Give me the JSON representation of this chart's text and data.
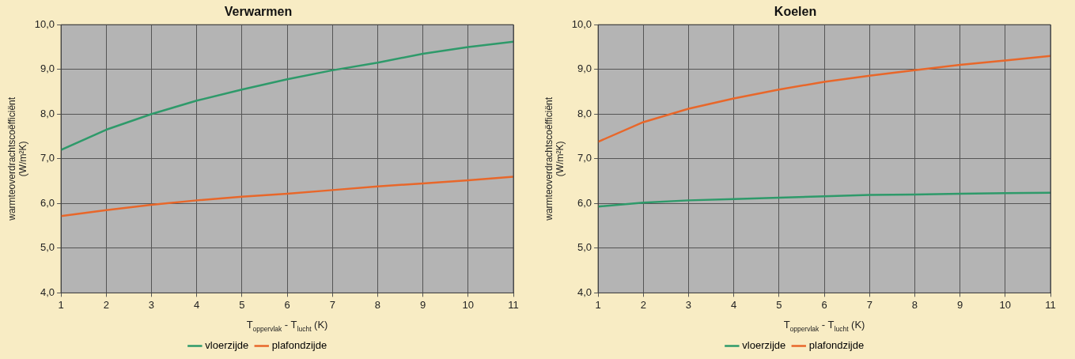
{
  "chart_data": [
    {
      "type": "line",
      "title": "Verwarmen",
      "xlabel": "T$_{oppervlak}$ - T$_{lucht}$ (K)",
      "ylabel": "warmteoverdrachtscoëfficiënt\n(W/m²K)",
      "x": [
        1,
        2,
        3,
        4,
        5,
        6,
        7,
        8,
        9,
        10,
        11
      ],
      "xlim": [
        1,
        11
      ],
      "xticks": [
        1,
        2,
        3,
        4,
        5,
        6,
        7,
        8,
        9,
        10,
        11
      ],
      "ylim": [
        4,
        10
      ],
      "yticks": [
        {
          "value": 4,
          "label": "4,0"
        },
        {
          "value": 5,
          "label": "5,0"
        },
        {
          "value": 6,
          "label": "6,0"
        },
        {
          "value": 7,
          "label": "7,0"
        },
        {
          "value": 8,
          "label": "8,0"
        },
        {
          "value": 9,
          "label": "9,0"
        },
        {
          "value": 10,
          "label": "10,0"
        }
      ],
      "grid": true,
      "legend": "bottom",
      "marker": "none",
      "line_style": "solid",
      "series": [
        {
          "name": "vloerzijde",
          "color": "#2e9a6a",
          "values": [
            7.2,
            7.65,
            8.0,
            8.3,
            8.55,
            8.78,
            8.98,
            9.15,
            9.35,
            9.5,
            9.62
          ]
        },
        {
          "name": "plafondzijde",
          "color": "#e8672a",
          "values": [
            5.72,
            5.85,
            5.97,
            6.07,
            6.15,
            6.22,
            6.3,
            6.38,
            6.45,
            6.52,
            6.6
          ]
        }
      ]
    },
    {
      "type": "line",
      "title": "Koelen",
      "xlabel": "T$_{oppervlak}$ - T$_{lucht}$ (K)",
      "ylabel": "warmteoverdrachtscoëfficiënt\n(W/m²K)",
      "x": [
        1,
        2,
        3,
        4,
        5,
        6,
        7,
        8,
        9,
        10,
        11
      ],
      "xlim": [
        1,
        11
      ],
      "xticks": [
        1,
        2,
        3,
        4,
        5,
        6,
        7,
        8,
        9,
        10,
        11
      ],
      "ylim": [
        4,
        10
      ],
      "yticks": [
        {
          "value": 4,
          "label": "4,0"
        },
        {
          "value": 5,
          "label": "5,0"
        },
        {
          "value": 6,
          "label": "6,0"
        },
        {
          "value": 7,
          "label": "7,0"
        },
        {
          "value": 8,
          "label": "8,0"
        },
        {
          "value": 9,
          "label": "9,0"
        },
        {
          "value": 10,
          "label": "10,0"
        }
      ],
      "grid": true,
      "legend": "bottom",
      "marker": "none",
      "line_style": "solid",
      "series": [
        {
          "name": "vloerzijde",
          "color": "#2e9a6a",
          "values": [
            5.93,
            6.02,
            6.07,
            6.1,
            6.13,
            6.16,
            6.19,
            6.2,
            6.22,
            6.23,
            6.24
          ]
        },
        {
          "name": "plafondzijde",
          "color": "#e8672a",
          "values": [
            7.38,
            7.82,
            8.12,
            8.35,
            8.55,
            8.72,
            8.86,
            8.98,
            9.1,
            9.2,
            9.3
          ]
        }
      ]
    }
  ]
}
